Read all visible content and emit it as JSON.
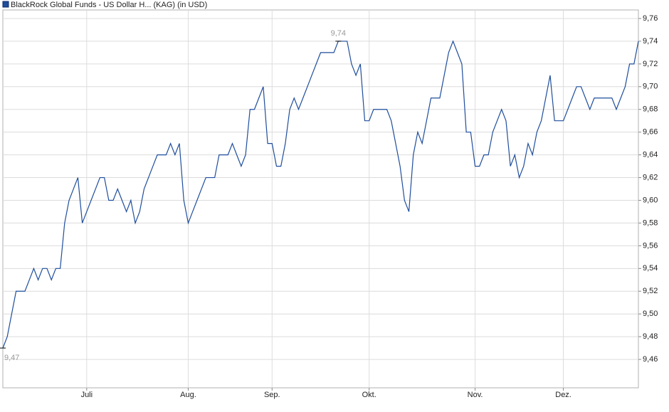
{
  "chart_data": {
    "type": "line",
    "series": [
      {
        "name": "BlackRock Global Funds - US Dollar H... (KAG) (in USD)",
        "color": "#1f4e9c",
        "values": [
          9.47,
          9.48,
          9.5,
          9.52,
          9.52,
          9.52,
          9.53,
          9.54,
          9.53,
          9.54,
          9.54,
          9.53,
          9.54,
          9.54,
          9.58,
          9.6,
          9.61,
          9.62,
          9.58,
          9.59,
          9.6,
          9.61,
          9.62,
          9.62,
          9.6,
          9.6,
          9.61,
          9.6,
          9.59,
          9.6,
          9.58,
          9.59,
          9.61,
          9.62,
          9.63,
          9.64,
          9.64,
          9.64,
          9.65,
          9.64,
          9.65,
          9.6,
          9.58,
          9.59,
          9.6,
          9.61,
          9.62,
          9.62,
          9.62,
          9.64,
          9.64,
          9.64,
          9.65,
          9.64,
          9.63,
          9.64,
          9.68,
          9.68,
          9.69,
          9.7,
          9.65,
          9.65,
          9.63,
          9.63,
          9.65,
          9.68,
          9.69,
          9.68,
          9.69,
          9.7,
          9.71,
          9.72,
          9.73,
          9.73,
          9.73,
          9.73,
          9.74,
          9.74,
          9.74,
          9.72,
          9.71,
          9.72,
          9.67,
          9.67,
          9.68,
          9.68,
          9.68,
          9.68,
          9.67,
          9.65,
          9.63,
          9.6,
          9.59,
          9.64,
          9.66,
          9.65,
          9.67,
          9.69,
          9.69,
          9.69,
          9.71,
          9.73,
          9.74,
          9.73,
          9.72,
          9.66,
          9.66,
          9.63,
          9.63,
          9.64,
          9.64,
          9.66,
          9.67,
          9.68,
          9.67,
          9.63,
          9.64,
          9.62,
          9.63,
          9.65,
          9.64,
          9.66,
          9.67,
          9.69,
          9.71,
          9.67,
          9.67,
          9.67,
          9.68,
          9.69,
          9.7,
          9.7,
          9.69,
          9.68,
          9.69,
          9.69,
          9.69,
          9.69,
          9.69,
          9.68,
          9.69,
          9.7,
          9.72,
          9.72,
          9.74
        ]
      }
    ],
    "categories": [
      null,
      null,
      null,
      null,
      null,
      null,
      null,
      null,
      null,
      null,
      null,
      null,
      null,
      null,
      null,
      null,
      null,
      null,
      null,
      "Juli",
      null,
      null,
      null,
      null,
      null,
      null,
      null,
      null,
      null,
      null,
      null,
      null,
      null,
      null,
      null,
      null,
      null,
      null,
      null,
      null,
      null,
      null,
      "Aug.",
      null,
      null,
      null,
      null,
      null,
      null,
      null,
      null,
      null,
      null,
      null,
      null,
      null,
      null,
      null,
      null,
      null,
      null,
      "Sep.",
      null,
      null,
      null,
      null,
      null,
      null,
      null,
      null,
      null,
      null,
      null,
      null,
      null,
      null,
      null,
      null,
      null,
      null,
      null,
      null,
      null,
      "Okt.",
      null,
      null,
      null,
      null,
      null,
      null,
      null,
      null,
      null,
      null,
      null,
      null,
      null,
      null,
      null,
      null,
      null,
      null,
      null,
      null,
      null,
      null,
      null,
      "Nov.",
      null,
      null,
      null,
      null,
      null,
      null,
      null,
      null,
      null,
      null,
      null,
      null,
      null,
      null,
      null,
      null,
      null,
      null,
      null,
      "Dez.",
      null,
      null,
      null,
      null,
      null,
      null,
      null,
      null,
      null,
      null,
      null,
      null,
      null,
      null,
      null,
      null,
      null
    ],
    "ylim": [
      9.435,
      9.7675
    ],
    "yticks": [
      {
        "value": 9.46,
        "label": "9,46"
      },
      {
        "value": 9.48,
        "label": "9,48"
      },
      {
        "value": 9.5,
        "label": "9,50"
      },
      {
        "value": 9.52,
        "label": "9,52"
      },
      {
        "value": 9.54,
        "label": "9,54"
      },
      {
        "value": 9.56,
        "label": "9,56"
      },
      {
        "value": 9.58,
        "label": "9,58"
      },
      {
        "value": 9.6,
        "label": "9,60"
      },
      {
        "value": 9.62,
        "label": "9,62"
      },
      {
        "value": 9.64,
        "label": "9,64"
      },
      {
        "value": 9.66,
        "label": "9,66"
      },
      {
        "value": 9.68,
        "label": "9,68"
      },
      {
        "value": 9.7,
        "label": "9,70"
      },
      {
        "value": 9.72,
        "label": "9,72"
      },
      {
        "value": 9.74,
        "label": "9,74"
      },
      {
        "value": 9.76,
        "label": "9,76"
      }
    ],
    "annotations": [
      {
        "label": "9,47",
        "value": 9.47
      },
      {
        "label": "9,74",
        "value": 9.74
      }
    ],
    "grid": true
  }
}
